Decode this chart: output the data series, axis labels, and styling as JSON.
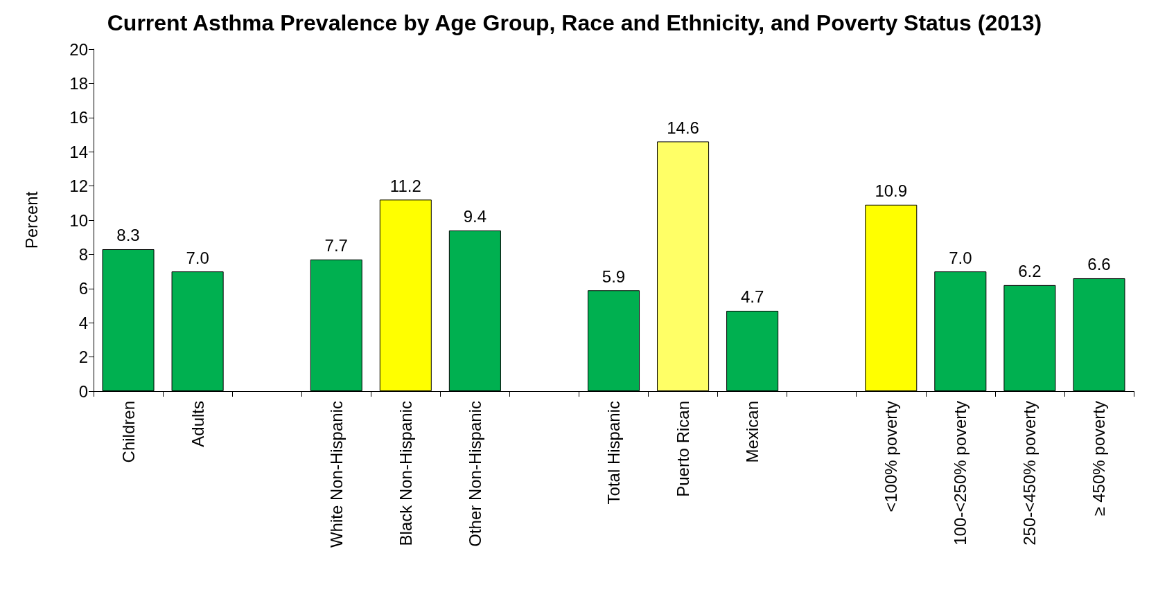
{
  "chart_data": {
    "type": "bar",
    "title": "Current Asthma Prevalence by Age Group, Race and Ethnicity, and Poverty Status (2013)",
    "ylabel": "Percent",
    "categories": [
      "Children",
      "Adults",
      null,
      "White Non-Hispanic",
      "Black Non-Hispanic",
      "Other Non-Hispanic",
      null,
      "Total Hispanic",
      "Puerto Rican",
      "Mexican",
      null,
      "<100% poverty",
      "100-<250% poverty",
      "250-<450% poverty",
      "≥ 450% poverty"
    ],
    "values": [
      8.3,
      7.0,
      null,
      7.7,
      11.2,
      9.4,
      null,
      5.9,
      14.6,
      4.7,
      null,
      10.9,
      7.0,
      6.2,
      6.6
    ],
    "colors": [
      "#00b050",
      "#00b050",
      "#00b050",
      "#00b050",
      "#ffff00",
      "#00b050",
      "#00b050",
      "#00b050",
      "#ffff66",
      "#00b050",
      "#00b050",
      "#ffff00",
      "#00b050",
      "#00b050",
      "#00b050"
    ],
    "value_labels": [
      "8.3",
      "7.0",
      null,
      "7.7",
      "11.2",
      "9.4",
      null,
      "5.9",
      "14.6",
      "4.7",
      null,
      "10.9",
      "7.0",
      "6.2",
      "6.6"
    ],
    "ylim": [
      0,
      20
    ],
    "yticks": [
      0,
      2,
      4,
      6,
      8,
      10,
      12,
      14,
      16,
      18,
      20
    ],
    "grid": false
  }
}
